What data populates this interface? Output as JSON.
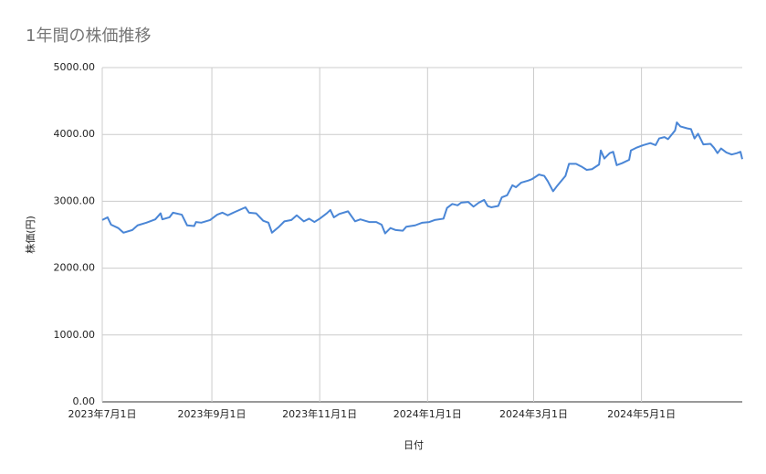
{
  "chart_data": {
    "type": "line",
    "title": "1年間の株価推移",
    "x_label": "日付",
    "y_label": "株価(円)",
    "color": "#4a86d6",
    "grid": true,
    "x": [
      "2023-07-01",
      "2023-07-04",
      "2023-07-06",
      "2023-07-10",
      "2023-07-13",
      "2023-07-18",
      "2023-07-21",
      "2023-07-26",
      "2023-07-31",
      "2023-08-03",
      "2023-08-04",
      "2023-08-08",
      "2023-08-10",
      "2023-08-15",
      "2023-08-18",
      "2023-08-22",
      "2023-08-23",
      "2023-08-26",
      "2023-08-31",
      "2023-09-04",
      "2023-09-07",
      "2023-09-10",
      "2023-09-14",
      "2023-09-20",
      "2023-09-22",
      "2023-09-26",
      "2023-09-30",
      "2023-10-03",
      "2023-10-05",
      "2023-10-09",
      "2023-10-12",
      "2023-10-16",
      "2023-10-19",
      "2023-10-23",
      "2023-10-26",
      "2023-10-29",
      "2023-11-01",
      "2023-11-05",
      "2023-11-07",
      "2023-11-09",
      "2023-11-12",
      "2023-11-17",
      "2023-11-21",
      "2023-11-24",
      "2023-11-29",
      "2023-12-03",
      "2023-12-06",
      "2023-12-08",
      "2023-12-11",
      "2023-12-14",
      "2023-12-18",
      "2023-12-20",
      "2023-12-25",
      "2023-12-29",
      "2024-01-02",
      "2024-01-05",
      "2024-01-10",
      "2024-01-12",
      "2024-01-15",
      "2024-01-18",
      "2024-01-20",
      "2024-01-24",
      "2024-01-27",
      "2024-01-30",
      "2024-02-02",
      "2024-02-04",
      "2024-02-06",
      "2024-02-10",
      "2024-02-12",
      "2024-02-15",
      "2024-02-18",
      "2024-02-20",
      "2024-02-23",
      "2024-02-27",
      "2024-02-29",
      "2024-03-04",
      "2024-03-07",
      "2024-03-09",
      "2024-03-12",
      "2024-03-14",
      "2024-03-19",
      "2024-03-21",
      "2024-03-25",
      "2024-03-28",
      "2024-03-31",
      "2024-04-03",
      "2024-04-07",
      "2024-04-08",
      "2024-04-10",
      "2024-04-13",
      "2024-04-15",
      "2024-04-17",
      "2024-04-20",
      "2024-04-24",
      "2024-04-25",
      "2024-04-28",
      "2024-05-02",
      "2024-05-06",
      "2024-05-09",
      "2024-05-11",
      "2024-05-14",
      "2024-05-16",
      "2024-05-20",
      "2024-05-21",
      "2024-05-23",
      "2024-05-27",
      "2024-05-29",
      "2024-05-31",
      "2024-06-02",
      "2024-06-05",
      "2024-06-09",
      "2024-06-11",
      "2024-06-13",
      "2024-06-15",
      "2024-06-18",
      "2024-06-21",
      "2024-06-24",
      "2024-06-26",
      "2024-06-27"
    ],
    "values": [
      2720,
      2760,
      2650,
      2600,
      2530,
      2570,
      2640,
      2680,
      2730,
      2820,
      2730,
      2760,
      2830,
      2800,
      2640,
      2630,
      2690,
      2680,
      2720,
      2800,
      2830,
      2790,
      2840,
      2910,
      2830,
      2820,
      2710,
      2680,
      2530,
      2620,
      2700,
      2720,
      2790,
      2700,
      2740,
      2690,
      2740,
      2820,
      2870,
      2760,
      2810,
      2850,
      2700,
      2730,
      2690,
      2690,
      2650,
      2520,
      2600,
      2570,
      2560,
      2620,
      2640,
      2680,
      2690,
      2720,
      2740,
      2900,
      2960,
      2940,
      2980,
      2990,
      2920,
      2980,
      3020,
      2930,
      2910,
      2930,
      3060,
      3090,
      3240,
      3210,
      3280,
      3310,
      3330,
      3400,
      3380,
      3300,
      3150,
      3220,
      3380,
      3560,
      3560,
      3520,
      3470,
      3480,
      3550,
      3760,
      3640,
      3720,
      3740,
      3540,
      3570,
      3620,
      3760,
      3800,
      3840,
      3870,
      3840,
      3940,
      3960,
      3930,
      4060,
      4180,
      4120,
      4090,
      4080,
      3940,
      4010,
      3850,
      3860,
      3800,
      3720,
      3790,
      3730,
      3700,
      3720,
      3740,
      3630
    ],
    "xlim": [
      "2023-07-01",
      "2024-06-27"
    ],
    "xticks": [
      {
        "value": "2023-07-01",
        "label": "2023年7月1日"
      },
      {
        "value": "2023-09-01",
        "label": "2023年9月1日"
      },
      {
        "value": "2023-11-01",
        "label": "2023年11月1日"
      },
      {
        "value": "2024-01-01",
        "label": "2024年1月1日"
      },
      {
        "value": "2024-03-01",
        "label": "2024年3月1日"
      },
      {
        "value": "2024-05-01",
        "label": "2024年5月1日"
      }
    ],
    "ylim": [
      0,
      5000
    ],
    "yticks": [
      {
        "value": 0,
        "label": "0.00"
      },
      {
        "value": 1000,
        "label": "1000.00"
      },
      {
        "value": 2000,
        "label": "2000.00"
      },
      {
        "value": 3000,
        "label": "3000.00"
      },
      {
        "value": 4000,
        "label": "4000.00"
      },
      {
        "value": 5000,
        "label": "5000.00"
      }
    ]
  }
}
